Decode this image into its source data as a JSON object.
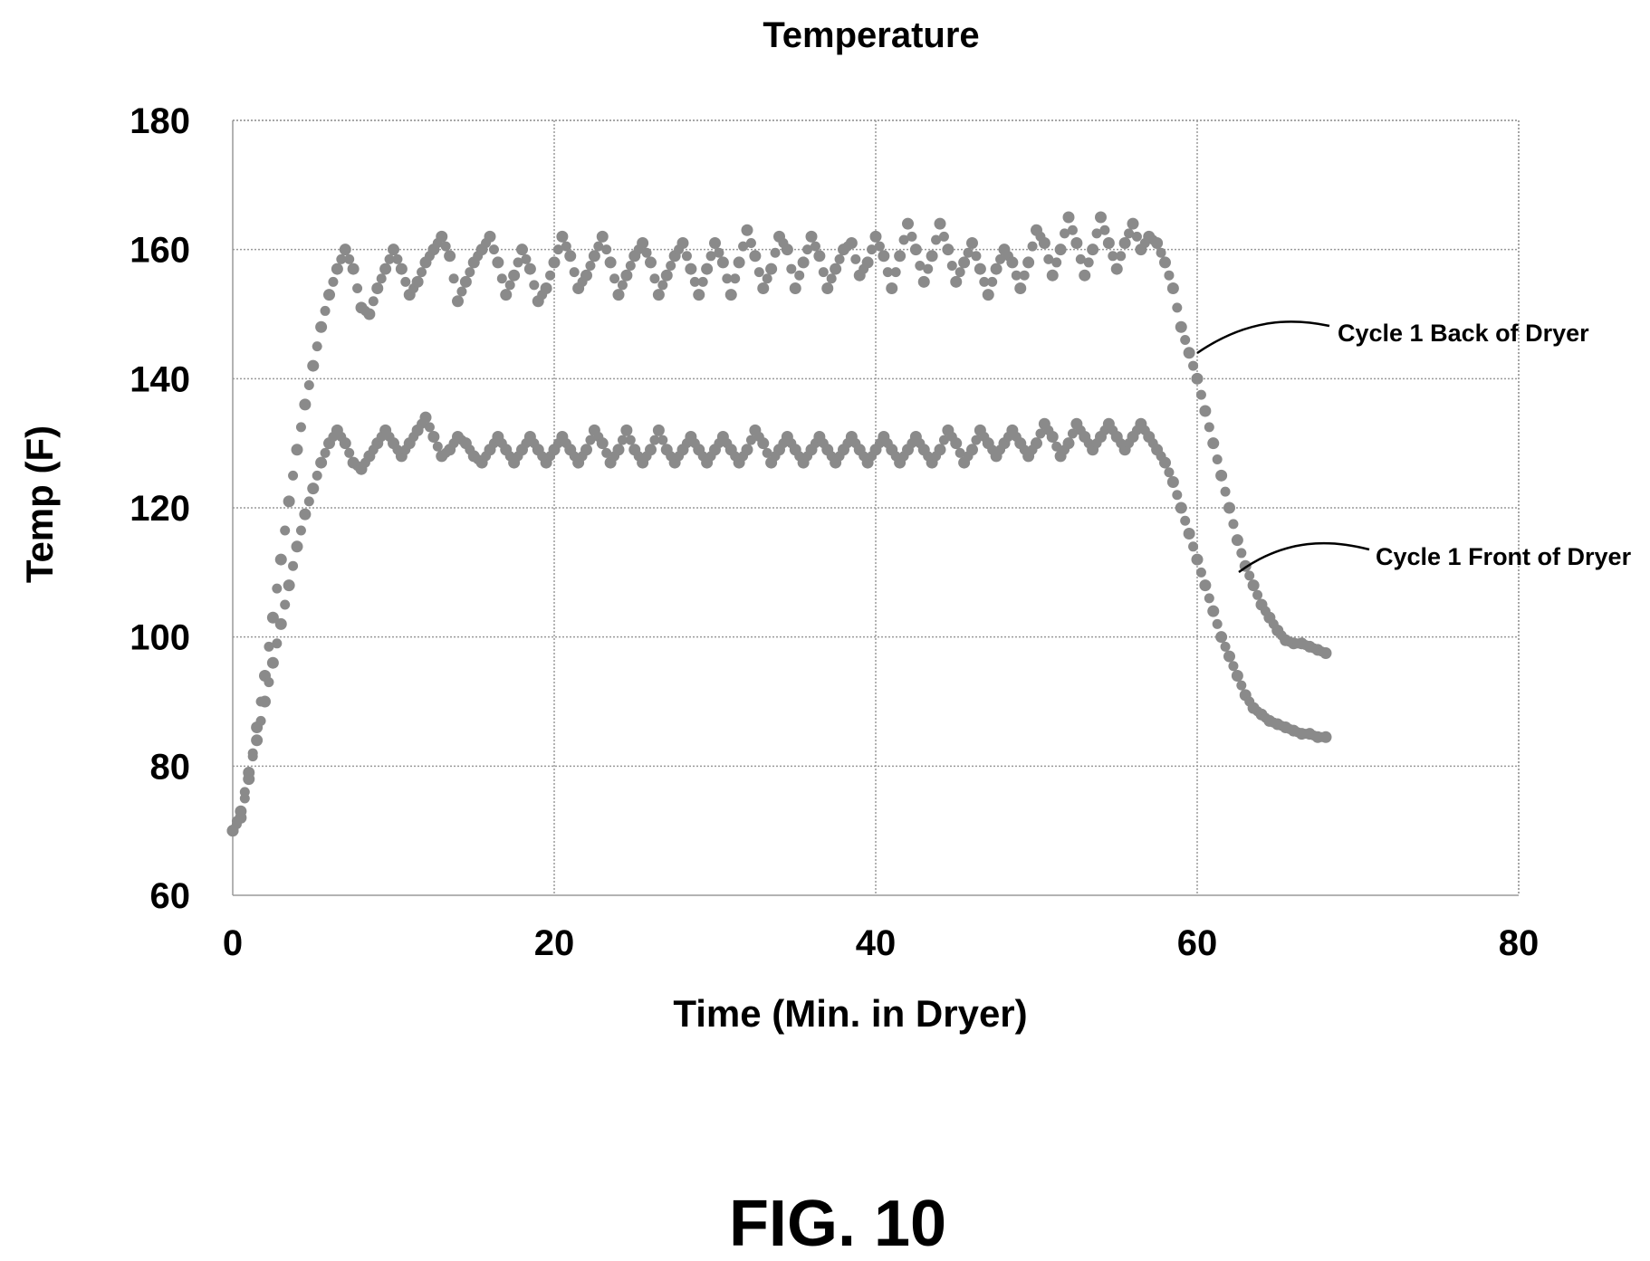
{
  "figure_label": "FIG. 10",
  "chart_data": {
    "type": "scatter",
    "title": "Temperature",
    "xlabel": "Time (Min. in Dryer)",
    "ylabel": "Temp (F)",
    "xlim": [
      0,
      80
    ],
    "ylim": [
      60,
      180
    ],
    "x_ticks": [
      "0",
      "20",
      "40",
      "60",
      "80"
    ],
    "y_ticks": [
      "60",
      "80",
      "100",
      "120",
      "140",
      "160",
      "180"
    ],
    "grid": true,
    "legend": "annotations",
    "marker_color": "#8a8a8a",
    "series": [
      {
        "name": "Cycle 1 Back of Dryer",
        "points": [
          [
            0,
            70
          ],
          [
            0.5,
            72
          ],
          [
            1,
            78
          ],
          [
            1.5,
            86
          ],
          [
            2,
            94
          ],
          [
            2.5,
            103
          ],
          [
            3,
            112
          ],
          [
            3.5,
            121
          ],
          [
            4,
            129
          ],
          [
            4.5,
            136
          ],
          [
            5,
            142
          ],
          [
            5.5,
            148
          ],
          [
            6,
            153
          ],
          [
            6.5,
            157
          ],
          [
            7,
            160
          ],
          [
            7.5,
            157
          ],
          [
            8,
            151
          ],
          [
            8.5,
            150
          ],
          [
            9,
            154
          ],
          [
            9.5,
            157
          ],
          [
            10,
            160
          ],
          [
            10.5,
            157
          ],
          [
            11,
            153
          ],
          [
            11.5,
            155
          ],
          [
            12,
            158
          ],
          [
            12.5,
            160
          ],
          [
            13,
            162
          ],
          [
            13.5,
            159
          ],
          [
            14,
            152
          ],
          [
            14.5,
            155
          ],
          [
            15,
            158
          ],
          [
            15.5,
            160
          ],
          [
            16,
            162
          ],
          [
            16.5,
            158
          ],
          [
            17,
            153
          ],
          [
            17.5,
            156
          ],
          [
            18,
            160
          ],
          [
            18.5,
            157
          ],
          [
            19,
            152
          ],
          [
            19.5,
            154
          ],
          [
            20,
            158
          ],
          [
            20.5,
            162
          ],
          [
            21,
            159
          ],
          [
            21.5,
            154
          ],
          [
            22,
            156
          ],
          [
            22.5,
            159
          ],
          [
            23,
            162
          ],
          [
            23.5,
            158
          ],
          [
            24,
            153
          ],
          [
            24.5,
            156
          ],
          [
            25,
            159
          ],
          [
            25.5,
            161
          ],
          [
            26,
            158
          ],
          [
            26.5,
            153
          ],
          [
            27,
            156
          ],
          [
            27.5,
            159
          ],
          [
            28,
            161
          ],
          [
            28.5,
            157
          ],
          [
            29,
            153
          ],
          [
            29.5,
            157
          ],
          [
            30,
            161
          ],
          [
            30.5,
            158
          ],
          [
            31,
            153
          ],
          [
            31.5,
            158
          ],
          [
            32,
            163
          ],
          [
            32.5,
            159
          ],
          [
            33,
            154
          ],
          [
            33.5,
            157
          ],
          [
            34,
            162
          ],
          [
            34.5,
            160
          ],
          [
            35,
            154
          ],
          [
            35.5,
            158
          ],
          [
            36,
            162
          ],
          [
            36.5,
            159
          ],
          [
            37,
            154
          ],
          [
            37.5,
            157
          ],
          [
            38,
            160
          ],
          [
            38.5,
            161
          ],
          [
            39,
            156
          ],
          [
            39.5,
            158
          ],
          [
            40,
            162
          ],
          [
            40.5,
            159
          ],
          [
            41,
            154
          ],
          [
            41.5,
            159
          ],
          [
            42,
            164
          ],
          [
            42.5,
            160
          ],
          [
            43,
            155
          ],
          [
            43.5,
            159
          ],
          [
            44,
            164
          ],
          [
            44.5,
            160
          ],
          [
            45,
            155
          ],
          [
            45.5,
            158
          ],
          [
            46,
            161
          ],
          [
            46.5,
            157
          ],
          [
            47,
            153
          ],
          [
            47.5,
            157
          ],
          [
            48,
            160
          ],
          [
            48.5,
            158
          ],
          [
            49,
            154
          ],
          [
            49.5,
            158
          ],
          [
            50,
            163
          ],
          [
            50.5,
            161
          ],
          [
            51,
            156
          ],
          [
            51.5,
            160
          ],
          [
            52,
            165
          ],
          [
            52.5,
            161
          ],
          [
            53,
            156
          ],
          [
            53.5,
            160
          ],
          [
            54,
            165
          ],
          [
            54.5,
            161
          ],
          [
            55,
            157
          ],
          [
            55.5,
            161
          ],
          [
            56,
            164
          ],
          [
            56.5,
            160
          ],
          [
            57,
            162
          ],
          [
            57.5,
            161
          ],
          [
            58,
            158
          ],
          [
            58.5,
            154
          ],
          [
            59,
            148
          ],
          [
            59.5,
            144
          ],
          [
            60,
            140
          ],
          [
            60.5,
            135
          ],
          [
            61,
            130
          ],
          [
            61.5,
            125
          ],
          [
            62,
            120
          ],
          [
            62.5,
            115
          ],
          [
            63,
            111
          ],
          [
            63.5,
            108
          ],
          [
            64,
            105
          ],
          [
            64.5,
            103
          ],
          [
            65,
            101
          ],
          [
            65.5,
            99.5
          ],
          [
            66,
            99
          ],
          [
            66.5,
            99
          ],
          [
            67,
            98.5
          ],
          [
            67.5,
            98
          ],
          [
            68,
            97.5
          ]
        ]
      },
      {
        "name": "Cycle 1 Front of Dryer",
        "points": [
          [
            0,
            70
          ],
          [
            0.5,
            73
          ],
          [
            1,
            79
          ],
          [
            1.5,
            84
          ],
          [
            2,
            90
          ],
          [
            2.5,
            96
          ],
          [
            3,
            102
          ],
          [
            3.5,
            108
          ],
          [
            4,
            114
          ],
          [
            4.5,
            119
          ],
          [
            5,
            123
          ],
          [
            5.5,
            127
          ],
          [
            6,
            130
          ],
          [
            6.5,
            132
          ],
          [
            7,
            130
          ],
          [
            7.5,
            127
          ],
          [
            8,
            126
          ],
          [
            8.5,
            128
          ],
          [
            9,
            130
          ],
          [
            9.5,
            132
          ],
          [
            10,
            130
          ],
          [
            10.5,
            128
          ],
          [
            11,
            130
          ],
          [
            11.5,
            132
          ],
          [
            12,
            134
          ],
          [
            12.5,
            131
          ],
          [
            13,
            128
          ],
          [
            13.5,
            129
          ],
          [
            14,
            131
          ],
          [
            14.5,
            130
          ],
          [
            15,
            128
          ],
          [
            15.5,
            127
          ],
          [
            16,
            129
          ],
          [
            16.5,
            131
          ],
          [
            17,
            129
          ],
          [
            17.5,
            127
          ],
          [
            18,
            129
          ],
          [
            18.5,
            131
          ],
          [
            19,
            129
          ],
          [
            19.5,
            127
          ],
          [
            20,
            129
          ],
          [
            20.5,
            131
          ],
          [
            21,
            129
          ],
          [
            21.5,
            127
          ],
          [
            22,
            129
          ],
          [
            22.5,
            132
          ],
          [
            23,
            130
          ],
          [
            23.5,
            127
          ],
          [
            24,
            129
          ],
          [
            24.5,
            132
          ],
          [
            25,
            129
          ],
          [
            25.5,
            127
          ],
          [
            26,
            129
          ],
          [
            26.5,
            132
          ],
          [
            27,
            129
          ],
          [
            27.5,
            127
          ],
          [
            28,
            129
          ],
          [
            28.5,
            131
          ],
          [
            29,
            129
          ],
          [
            29.5,
            127
          ],
          [
            30,
            129
          ],
          [
            30.5,
            131
          ],
          [
            31,
            129
          ],
          [
            31.5,
            127
          ],
          [
            32,
            129
          ],
          [
            32.5,
            132
          ],
          [
            33,
            130
          ],
          [
            33.5,
            127
          ],
          [
            34,
            129
          ],
          [
            34.5,
            131
          ],
          [
            35,
            129
          ],
          [
            35.5,
            127
          ],
          [
            36,
            129
          ],
          [
            36.5,
            131
          ],
          [
            37,
            129
          ],
          [
            37.5,
            127
          ],
          [
            38,
            129
          ],
          [
            38.5,
            131
          ],
          [
            39,
            129
          ],
          [
            39.5,
            127
          ],
          [
            40,
            129
          ],
          [
            40.5,
            131
          ],
          [
            41,
            129
          ],
          [
            41.5,
            127
          ],
          [
            42,
            129
          ],
          [
            42.5,
            131
          ],
          [
            43,
            129
          ],
          [
            43.5,
            127
          ],
          [
            44,
            129
          ],
          [
            44.5,
            132
          ],
          [
            45,
            130
          ],
          [
            45.5,
            127
          ],
          [
            46,
            129
          ],
          [
            46.5,
            132
          ],
          [
            47,
            130
          ],
          [
            47.5,
            128
          ],
          [
            48,
            130
          ],
          [
            48.5,
            132
          ],
          [
            49,
            130
          ],
          [
            49.5,
            128
          ],
          [
            50,
            130
          ],
          [
            50.5,
            133
          ],
          [
            51,
            131
          ],
          [
            51.5,
            128
          ],
          [
            52,
            130
          ],
          [
            52.5,
            133
          ],
          [
            53,
            131
          ],
          [
            53.5,
            129
          ],
          [
            54,
            131
          ],
          [
            54.5,
            133
          ],
          [
            55,
            131
          ],
          [
            55.5,
            129
          ],
          [
            56,
            131
          ],
          [
            56.5,
            133
          ],
          [
            57,
            131
          ],
          [
            57.5,
            129
          ],
          [
            58,
            127
          ],
          [
            58.5,
            124
          ],
          [
            59,
            120
          ],
          [
            59.5,
            116
          ],
          [
            60,
            112
          ],
          [
            60.5,
            108
          ],
          [
            61,
            104
          ],
          [
            61.5,
            100
          ],
          [
            62,
            97
          ],
          [
            62.5,
            94
          ],
          [
            63,
            91
          ],
          [
            63.5,
            89
          ],
          [
            64,
            88
          ],
          [
            64.5,
            87
          ],
          [
            65,
            86.5
          ],
          [
            65.5,
            86
          ],
          [
            66,
            85.5
          ],
          [
            66.5,
            85
          ],
          [
            67,
            85
          ],
          [
            67.5,
            84.5
          ],
          [
            68,
            84.5
          ]
        ]
      }
    ]
  }
}
